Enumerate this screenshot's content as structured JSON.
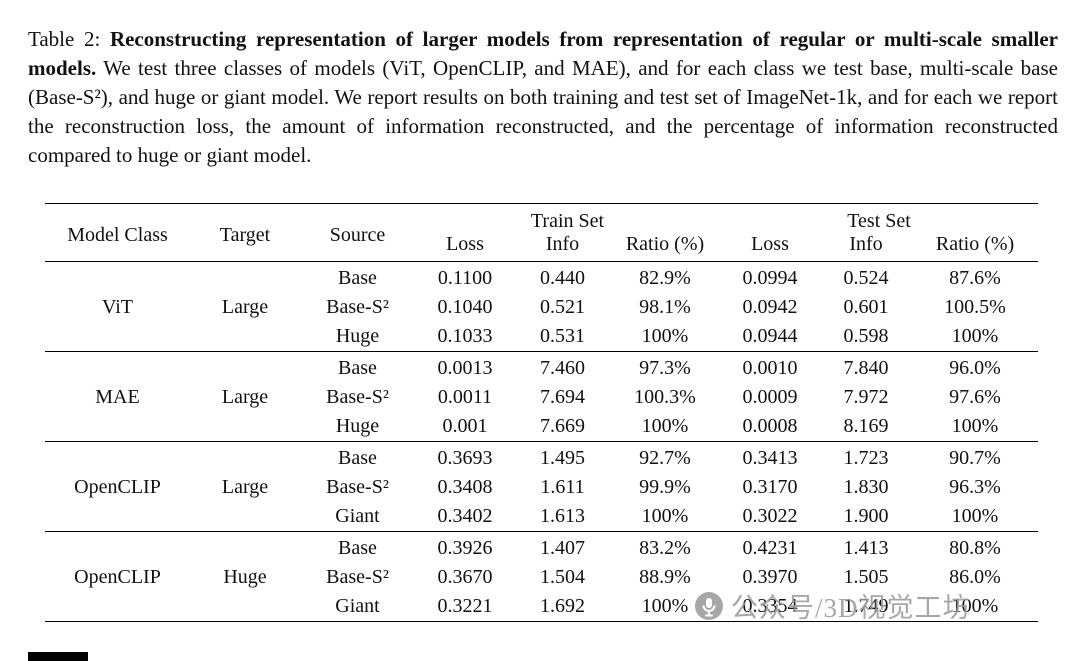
{
  "caption": {
    "prefix": "Table 2: ",
    "bold": "Reconstructing representation of larger models from representation of regular or multi-scale smaller models.",
    "body": " We test three classes of models (ViT, OpenCLIP, and MAE), and for each class we test base, multi-scale base (Base-S²), and huge or giant model. We report results on both training and test set of ImageNet-1k, and for each we report the reconstruction loss, the amount of information reconstructed, and the percentage of information reconstructed compared to huge or giant model."
  },
  "table": {
    "headers": {
      "model_class": "Model Class",
      "target": "Target",
      "source": "Source",
      "train_set": "Train Set",
      "test_set": "Test Set",
      "loss": "Loss",
      "info": "Info",
      "ratio": "Ratio (%)"
    },
    "groups": [
      {
        "model_class": "ViT",
        "target": "Large",
        "rows": [
          {
            "source": "Base",
            "train": [
              "0.1100",
              "0.440",
              "82.9%"
            ],
            "test": [
              "0.0994",
              "0.524",
              "87.6%"
            ],
            "bold_ratio": false
          },
          {
            "source": "Base-S²",
            "train": [
              "0.1040",
              "0.521",
              "98.1%"
            ],
            "test": [
              "0.0942",
              "0.601",
              "100.5%"
            ],
            "bold_ratio": true
          },
          {
            "source": "Huge",
            "train": [
              "0.1033",
              "0.531",
              "100%"
            ],
            "test": [
              "0.0944",
              "0.598",
              "100%"
            ],
            "bold_ratio": false
          }
        ]
      },
      {
        "model_class": "MAE",
        "target": "Large",
        "rows": [
          {
            "source": "Base",
            "train": [
              "0.0013",
              "7.460",
              "97.3%"
            ],
            "test": [
              "0.0010",
              "7.840",
              "96.0%"
            ],
            "bold_ratio": false
          },
          {
            "source": "Base-S²",
            "train": [
              "0.0011",
              "7.694",
              "100.3%"
            ],
            "test": [
              "0.0009",
              "7.972",
              "97.6%"
            ],
            "bold_ratio": true
          },
          {
            "source": "Huge",
            "train": [
              "0.001",
              "7.669",
              "100%"
            ],
            "test": [
              "0.0008",
              "8.169",
              "100%"
            ],
            "bold_ratio": false
          }
        ]
      },
      {
        "model_class": "OpenCLIP",
        "target": "Large",
        "rows": [
          {
            "source": "Base",
            "train": [
              "0.3693",
              "1.495",
              "92.7%"
            ],
            "test": [
              "0.3413",
              "1.723",
              "90.7%"
            ],
            "bold_ratio": false
          },
          {
            "source": "Base-S²",
            "train": [
              "0.3408",
              "1.611",
              "99.9%"
            ],
            "test": [
              "0.3170",
              "1.830",
              "96.3%"
            ],
            "bold_ratio": true
          },
          {
            "source": "Giant",
            "train": [
              "0.3402",
              "1.613",
              "100%"
            ],
            "test": [
              "0.3022",
              "1.900",
              "100%"
            ],
            "bold_ratio": false
          }
        ]
      },
      {
        "model_class": "OpenCLIP",
        "target": "Huge",
        "rows": [
          {
            "source": "Base",
            "train": [
              "0.3926",
              "1.407",
              "83.2%"
            ],
            "test": [
              "0.4231",
              "1.413",
              "80.8%"
            ],
            "bold_ratio": false
          },
          {
            "source": "Base-S²",
            "train": [
              "0.3670",
              "1.504",
              "88.9%"
            ],
            "test": [
              "0.3970",
              "1.505",
              "86.0%"
            ],
            "bold_ratio": true
          },
          {
            "source": "Giant",
            "train": [
              "0.3221",
              "1.692",
              "100%"
            ],
            "test": [
              "0.3354",
              "1.749",
              "100%"
            ],
            "bold_ratio": false
          }
        ]
      }
    ]
  },
  "watermark": {
    "text": "公众号/3D视觉工坊"
  }
}
